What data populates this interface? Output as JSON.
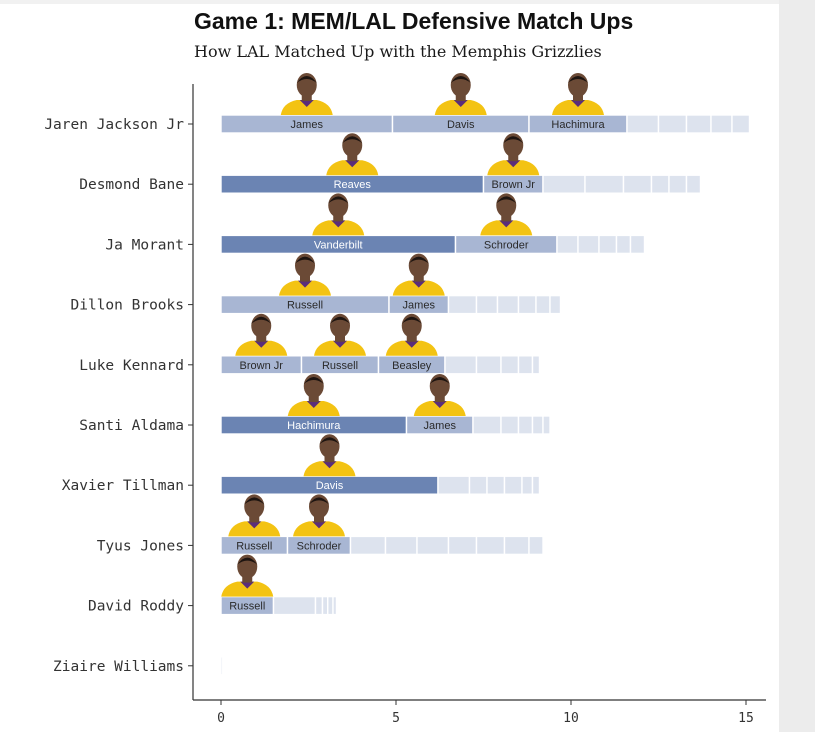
{
  "chart_data": {
    "type": "bar",
    "orientation": "horizontal",
    "stacked": true,
    "title": "Game 1: MEM/LAL Defensive Match Ups",
    "subtitle": "How LAL Matched Up with the Memphis Grizzlies",
    "xlim": [
      0,
      15.5
    ],
    "xticks": [
      0,
      5,
      10,
      15
    ],
    "grid": false,
    "rows": [
      {
        "player": "Jaren Jackson Jr",
        "segments": [
          {
            "defender": "James",
            "value": 4.9
          },
          {
            "defender": "Davis",
            "value": 3.9
          },
          {
            "defender": "Hachimura",
            "value": 2.8
          },
          {
            "value": 0.9
          },
          {
            "value": 0.8
          },
          {
            "value": 0.7
          },
          {
            "value": 0.6
          },
          {
            "value": 0.5
          }
        ]
      },
      {
        "player": "Desmond Bane",
        "segments": [
          {
            "defender": "Reaves",
            "value": 7.5
          },
          {
            "defender": "Brown Jr",
            "value": 1.7
          },
          {
            "value": 1.2
          },
          {
            "value": 1.1
          },
          {
            "value": 0.8
          },
          {
            "value": 0.5
          },
          {
            "value": 0.5
          },
          {
            "value": 0.4
          }
        ]
      },
      {
        "player": "Ja Morant",
        "segments": [
          {
            "defender": "Vanderbilt",
            "value": 6.7
          },
          {
            "defender": "Schroder",
            "value": 2.9
          },
          {
            "value": 0.6
          },
          {
            "value": 0.6
          },
          {
            "value": 0.5
          },
          {
            "value": 0.4
          },
          {
            "value": 0.4
          }
        ]
      },
      {
        "player": "Dillon Brooks",
        "segments": [
          {
            "defender": "Russell",
            "value": 4.8
          },
          {
            "defender": "James",
            "value": 1.7
          },
          {
            "value": 0.8
          },
          {
            "value": 0.6
          },
          {
            "value": 0.6
          },
          {
            "value": 0.5
          },
          {
            "value": 0.4
          },
          {
            "value": 0.3
          }
        ]
      },
      {
        "player": "Luke Kennard",
        "segments": [
          {
            "defender": "Brown Jr",
            "value": 2.3
          },
          {
            "defender": "Russell",
            "value": 2.2
          },
          {
            "defender": "Beasley",
            "value": 1.9
          },
          {
            "value": 0.9
          },
          {
            "value": 0.7
          },
          {
            "value": 0.5
          },
          {
            "value": 0.4
          },
          {
            "value": 0.2
          }
        ]
      },
      {
        "player": "Santi Aldama",
        "segments": [
          {
            "defender": "Hachimura",
            "value": 5.3
          },
          {
            "defender": "James",
            "value": 1.9
          },
          {
            "value": 0.8
          },
          {
            "value": 0.5
          },
          {
            "value": 0.4
          },
          {
            "value": 0.3
          },
          {
            "value": 0.2
          }
        ]
      },
      {
        "player": "Xavier Tillman",
        "segments": [
          {
            "defender": "Davis",
            "value": 6.2
          },
          {
            "value": 0.9
          },
          {
            "value": 0.5
          },
          {
            "value": 0.5
          },
          {
            "value": 0.5
          },
          {
            "value": 0.3
          },
          {
            "value": 0.2
          }
        ]
      },
      {
        "player": "Tyus Jones",
        "segments": [
          {
            "defender": "Russell",
            "value": 1.9
          },
          {
            "defender": "Schroder",
            "value": 1.8
          },
          {
            "value": 1.0
          },
          {
            "value": 0.9
          },
          {
            "value": 0.9
          },
          {
            "value": 0.8
          },
          {
            "value": 0.8
          },
          {
            "value": 0.7
          },
          {
            "value": 0.4
          }
        ]
      },
      {
        "player": "David Roddy",
        "segments": [
          {
            "defender": "Russell",
            "value": 1.5
          },
          {
            "value": 1.2
          },
          {
            "value": 0.2
          },
          {
            "value": 0.15
          },
          {
            "value": 0.15
          },
          {
            "value": 0.1
          }
        ]
      },
      {
        "player": "Ziaire Williams",
        "segments": [
          {
            "value": 0.05
          }
        ]
      }
    ]
  },
  "colors": {
    "dark": "#6b84b3",
    "mid": "#a8b6d3",
    "light": "#dde3ee",
    "axis": "#333333",
    "jersey": "#f3c313",
    "skin": "#6b4a36"
  }
}
